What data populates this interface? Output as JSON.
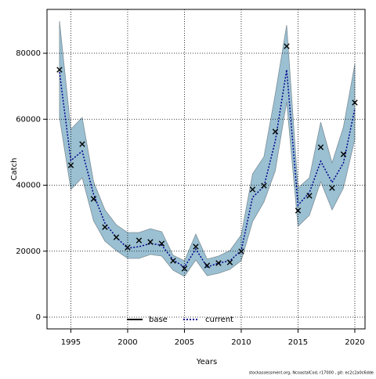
{
  "chart_data": {
    "type": "line",
    "xlabel": "Years",
    "ylabel": "Catch",
    "footnote": "stockassessment.org, NcoastalCod, r17000 , git: ec2c2a0c6dde",
    "x": [
      1994,
      1995,
      1996,
      1997,
      1998,
      1999,
      2000,
      2001,
      2002,
      2003,
      2004,
      2005,
      2006,
      2007,
      2008,
      2009,
      2010,
      2011,
      2012,
      2013,
      2014,
      2015,
      2016,
      2017,
      2018,
      2019,
      2020
    ],
    "series": [
      {
        "name": "current",
        "color": "#00008b",
        "dash": "dotted",
        "values": [
          74300,
          47480,
          50330,
          37270,
          28490,
          24210,
          20890,
          21370,
          22310,
          21840,
          17330,
          15190,
          20650,
          15190,
          16380,
          17090,
          20180,
          36320,
          39640,
          53410,
          75010,
          33950,
          37740,
          47240,
          40830,
          46770,
          63140
        ]
      }
    ],
    "band": {
      "color": "#9ac0d2",
      "edge": "#7f8f99",
      "upper": [
        89730,
        56970,
        60530,
        41070,
        32520,
        28010,
        25640,
        25640,
        26820,
        25880,
        18750,
        17090,
        25160,
        17570,
        18520,
        20180,
        24930,
        43440,
        48660,
        67660,
        88550,
        39170,
        42260,
        59110,
        46770,
        57690,
        76680
      ],
      "lower": [
        60530,
        38690,
        42260,
        29200,
        23030,
        20180,
        17800,
        17800,
        18990,
        18520,
        14240,
        12340,
        17330,
        12580,
        13290,
        14480,
        17090,
        28960,
        34900,
        44390,
        65280,
        27540,
        30860,
        41070,
        32520,
        39170,
        53890
      ]
    },
    "observed": {
      "color": "#000000",
      "values": [
        75000,
        46050,
        52460,
        35850,
        27300,
        24200,
        21130,
        23260,
        22790,
        22300,
        17090,
        14720,
        21370,
        15670,
        16380,
        16620,
        19940,
        38700,
        39880,
        56260,
        82140,
        32290,
        36800,
        51510,
        39170,
        49380,
        65050
      ]
    },
    "legend": {
      "position": "bottom",
      "entries": [
        {
          "name": "base",
          "color": "#000000",
          "dash": "solid"
        },
        {
          "name": "current",
          "color": "#00008b",
          "dash": "dotted"
        }
      ]
    },
    "xlim": [
      1992.9,
      2020.9
    ],
    "ylim": [
      -3560,
      93300
    ],
    "xticks": [
      1995,
      2000,
      2005,
      2010,
      2015,
      2020
    ],
    "yticks": [
      0,
      20000,
      40000,
      60000,
      80000
    ],
    "grid": true
  }
}
